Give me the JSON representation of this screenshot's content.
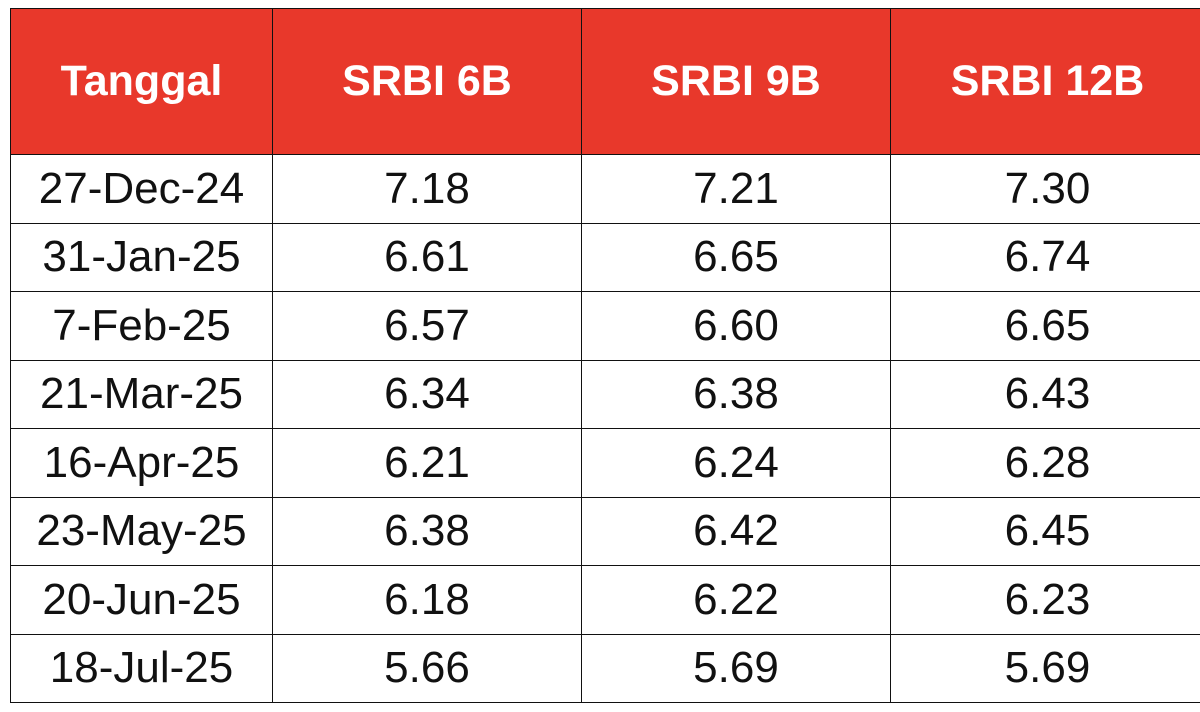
{
  "colors": {
    "header_bg": "#e8382b",
    "header_text": "#ffffff",
    "cell_text": "#111111",
    "border": "#111111"
  },
  "table": {
    "headers": [
      "Tanggal",
      "SRBI 6B",
      "SRBI 9B",
      "SRBI 12B"
    ],
    "rows": [
      [
        "27-Dec-24",
        "7.18",
        "7.21",
        "7.30"
      ],
      [
        "31-Jan-25",
        "6.61",
        "6.65",
        "6.74"
      ],
      [
        "7-Feb-25",
        "6.57",
        "6.60",
        "6.65"
      ],
      [
        "21-Mar-25",
        "6.34",
        "6.38",
        "6.43"
      ],
      [
        "16-Apr-25",
        "6.21",
        "6.24",
        "6.28"
      ],
      [
        "23-May-25",
        "6.38",
        "6.42",
        "6.45"
      ],
      [
        "20-Jun-25",
        "6.18",
        "6.22",
        "6.23"
      ],
      [
        "18-Jul-25",
        "5.66",
        "5.69",
        "5.69"
      ]
    ]
  }
}
